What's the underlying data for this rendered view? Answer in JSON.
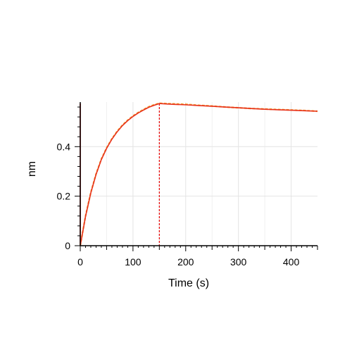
{
  "chart_data": {
    "type": "line",
    "xlabel": "Time (s)",
    "ylabel": "nm",
    "xlim": [
      0,
      450
    ],
    "ylim": [
      0,
      0.58
    ],
    "grid": true,
    "x_ticks": [
      0,
      100,
      200,
      300,
      400
    ],
    "x_tick_labels": [
      "0",
      "100",
      "200",
      "300",
      "400"
    ],
    "y_ticks": [
      0,
      0.2,
      0.4
    ],
    "y_tick_labels": [
      "0",
      "0.2",
      "0.4"
    ],
    "vertical_markers": [
      {
        "x": 0,
        "color": "#c80000",
        "style": "solid"
      },
      {
        "x": 150,
        "color": "#e60000",
        "style": "dashed"
      }
    ],
    "series": [
      {
        "color": "#f0a030",
        "style": "dashed",
        "x": [
          0,
          10,
          20,
          30,
          40,
          50,
          60,
          70,
          80,
          90,
          100,
          110,
          120,
          130,
          140,
          150,
          175,
          200,
          225,
          250,
          275,
          300,
          325,
          350,
          375,
          400,
          425,
          450
        ],
        "y": [
          0.0,
          0.12,
          0.215,
          0.29,
          0.35,
          0.395,
          0.432,
          0.462,
          0.487,
          0.507,
          0.524,
          0.538,
          0.55,
          0.561,
          0.569,
          0.575,
          0.573,
          0.571,
          0.567,
          0.564,
          0.56,
          0.557,
          0.554,
          0.552,
          0.55,
          0.548,
          0.546,
          0.543
        ]
      },
      {
        "color": "#e8321e",
        "style": "solid",
        "x": [
          0,
          10,
          20,
          30,
          40,
          50,
          60,
          70,
          80,
          90,
          100,
          110,
          120,
          130,
          140,
          150,
          175,
          200,
          225,
          250,
          275,
          300,
          325,
          350,
          375,
          400,
          425,
          450
        ],
        "y": [
          0.0,
          0.118,
          0.213,
          0.288,
          0.348,
          0.393,
          0.43,
          0.46,
          0.485,
          0.505,
          0.522,
          0.536,
          0.548,
          0.559,
          0.567,
          0.574,
          0.571,
          0.569,
          0.566,
          0.563,
          0.56,
          0.557,
          0.554,
          0.551,
          0.549,
          0.547,
          0.545,
          0.543
        ]
      }
    ]
  }
}
